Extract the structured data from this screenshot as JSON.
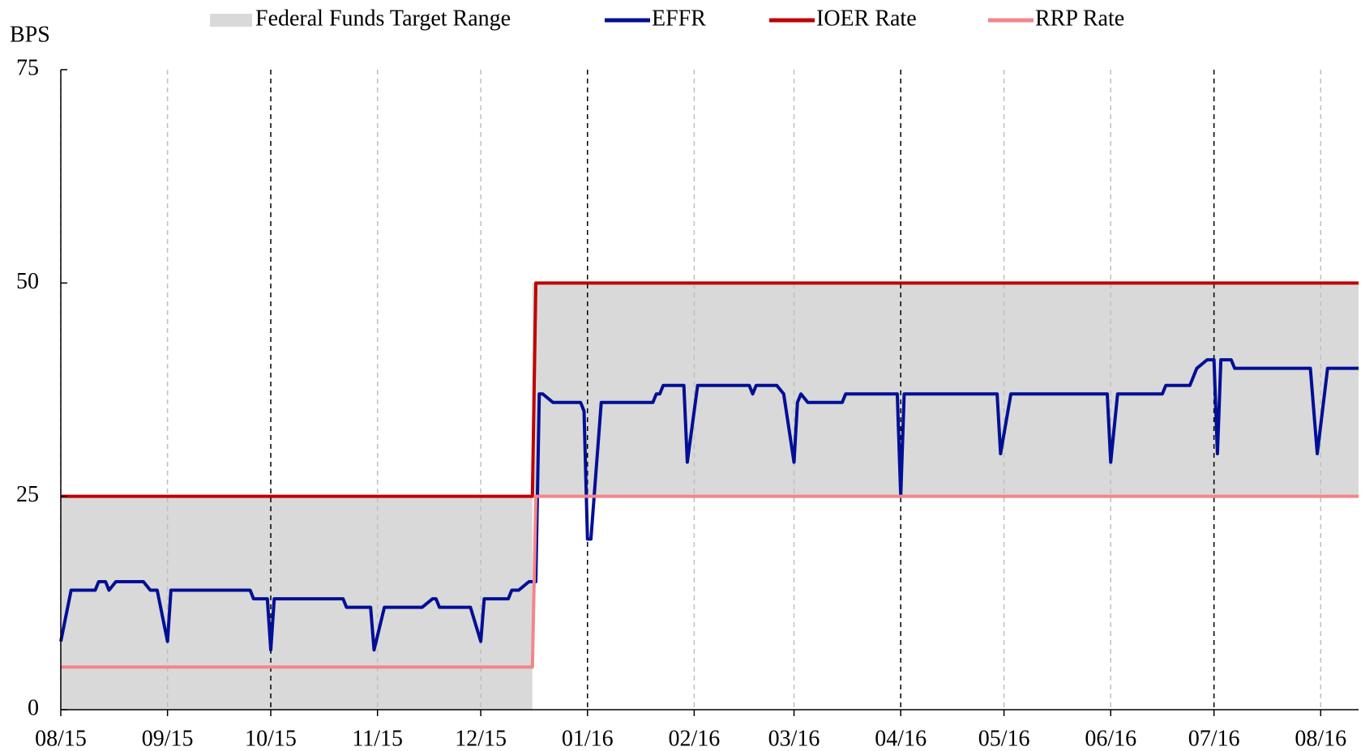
{
  "chart_data": {
    "type": "line",
    "ylabel": "BPS",
    "ylim": [
      0,
      75
    ],
    "yticks": [
      0,
      25,
      50,
      75
    ],
    "xlim": [
      0,
      377
    ],
    "xticks": [
      {
        "value": 0,
        "label": "08/15"
      },
      {
        "value": 31,
        "label": "09/15"
      },
      {
        "value": 61,
        "label": "10/15"
      },
      {
        "value": 92,
        "label": "11/15"
      },
      {
        "value": 122,
        "label": "12/15"
      },
      {
        "value": 153,
        "label": "01/16"
      },
      {
        "value": 184,
        "label": "02/16"
      },
      {
        "value": 213,
        "label": "03/16"
      },
      {
        "value": 244,
        "label": "04/16"
      },
      {
        "value": 274,
        "label": "05/16"
      },
      {
        "value": 305,
        "label": "06/16"
      },
      {
        "value": 335,
        "label": "07/16"
      },
      {
        "value": 366,
        "label": "08/16"
      }
    ],
    "xgrid_colors": [
      "#bfbfbf",
      "#bfbfbf",
      "#000000",
      "#bfbfbf",
      "#bfbfbf",
      "#000000",
      "#bfbfbf",
      "#bfbfbf",
      "#000000",
      "#bfbfbf",
      "#bfbfbf",
      "#000000",
      "#bfbfbf"
    ],
    "range": {
      "name": "Federal Funds Target Range",
      "color": "#d9d9d9",
      "x": [
        0,
        137,
        137,
        377
      ],
      "lower": [
        0,
        0,
        25,
        25
      ],
      "upper": [
        25,
        25,
        50,
        50
      ]
    },
    "series": [
      {
        "name": "EFFR",
        "color": "#000f96",
        "x": [
          0,
          3,
          10,
          11,
          13,
          14,
          16,
          24,
          26,
          28,
          31,
          32,
          55,
          56,
          60,
          61,
          62,
          82,
          83,
          90,
          91,
          94,
          105,
          108,
          109,
          110,
          119,
          122,
          123,
          130,
          131,
          133,
          136,
          138,
          139,
          140,
          143,
          151,
          152,
          153,
          154,
          157,
          172,
          173,
          174,
          175,
          181,
          182,
          185,
          200,
          201,
          202,
          208,
          210,
          213,
          214,
          215,
          217,
          227,
          228,
          243,
          244,
          245,
          272,
          273,
          276,
          304,
          305,
          307,
          320,
          321,
          328,
          330,
          333,
          335,
          336,
          337,
          340,
          341,
          363,
          365,
          368,
          377
        ],
        "values": [
          8,
          14,
          14,
          15,
          15,
          14,
          15,
          15,
          14,
          14,
          8,
          14,
          14,
          13,
          13,
          7,
          13,
          13,
          12,
          12,
          7,
          12,
          12,
          13,
          13,
          12,
          12,
          8,
          13,
          13,
          14,
          14,
          15,
          15,
          37,
          37,
          36,
          36,
          35,
          20,
          20,
          36,
          36,
          37,
          37,
          38,
          38,
          29,
          38,
          38,
          37,
          38,
          38,
          37,
          29,
          36,
          37,
          36,
          36,
          37,
          37,
          25,
          37,
          37,
          30,
          37,
          37,
          29,
          37,
          37,
          38,
          38,
          40,
          41,
          41,
          30,
          41,
          41,
          40,
          40,
          30,
          40,
          40
        ]
      },
      {
        "name": "IOER Rate",
        "color": "#c00000",
        "x": [
          0,
          137,
          138,
          377
        ],
        "values": [
          25,
          25,
          50,
          50
        ]
      },
      {
        "name": "RRP Rate",
        "color": "#f4858a",
        "x": [
          0,
          137,
          138,
          377
        ],
        "values": [
          5,
          5,
          25,
          25
        ]
      }
    ]
  }
}
